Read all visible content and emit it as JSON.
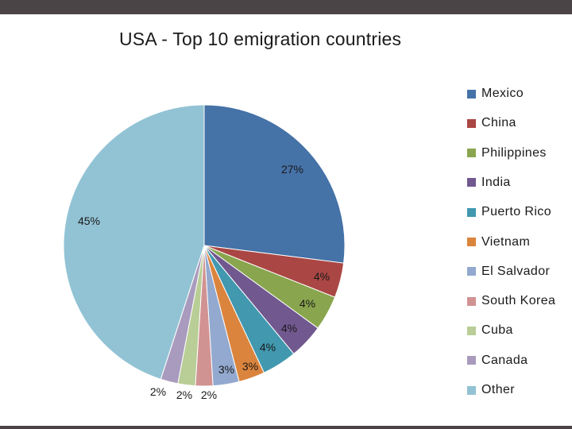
{
  "chart_data": {
    "type": "pie",
    "title": "USA - Top 10 emigration countries",
    "slices": [
      {
        "label": "Mexico",
        "value": 27,
        "display": "27%",
        "color": "#4572a7"
      },
      {
        "label": "China",
        "value": 4,
        "display": "4%",
        "color": "#aa4643"
      },
      {
        "label": "Philippines",
        "value": 4,
        "display": "4%",
        "color": "#89a54e"
      },
      {
        "label": "India",
        "value": 4,
        "display": "4%",
        "color": "#71588f"
      },
      {
        "label": "Puerto Rico",
        "value": 4,
        "display": "4%",
        "color": "#4198af"
      },
      {
        "label": "Vietnam",
        "value": 3,
        "display": "3%",
        "color": "#db843d"
      },
      {
        "label": "El Salvador",
        "value": 3,
        "display": "3%",
        "color": "#93a9cf"
      },
      {
        "label": "South Korea",
        "value": 2,
        "display": "2%",
        "color": "#d19392"
      },
      {
        "label": "Cuba",
        "value": 2,
        "display": "2%",
        "color": "#b9cd96"
      },
      {
        "label": "Canada",
        "value": 2,
        "display": "2%",
        "color": "#a99bbd"
      },
      {
        "label": "Other",
        "value": 45,
        "display": "45%",
        "color": "#92c3d4"
      }
    ],
    "legend_position": "right"
  }
}
